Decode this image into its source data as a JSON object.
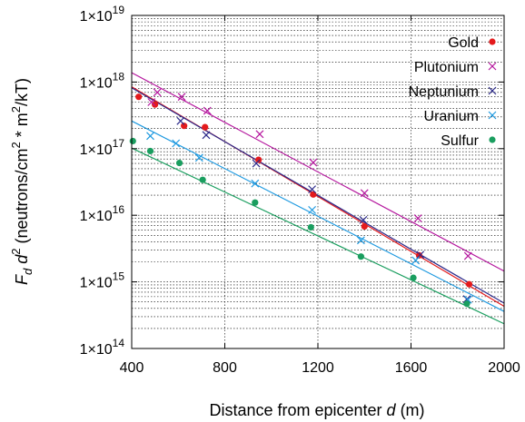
{
  "chart_data": {
    "type": "scatter",
    "xlabel_text": "Distance from epicenter ",
    "xlabel_var": "d",
    "xlabel_unit": " (m)",
    "ylabel_F": "F",
    "ylabel_sub": "d",
    "ylabel_d": "d",
    "ylabel_sup": "2",
    "ylabel_units_a": " (neutrons/cm",
    "ylabel_units_b": " * m",
    "ylabel_units_c": "/kT)",
    "x_scale": "linear",
    "y_scale": "log",
    "xlim": [
      400,
      2000
    ],
    "ylim": [
      100000000000000.0,
      1e+19
    ],
    "x_ticks": [
      {
        "value": 400,
        "label": "400"
      },
      {
        "value": 800,
        "label": "800"
      },
      {
        "value": 1200,
        "label": "1200"
      },
      {
        "value": 1600,
        "label": "1600"
      },
      {
        "value": 2000,
        "label": "2000"
      }
    ],
    "y_ticks": [
      {
        "value": 100000000000000.0,
        "base": "1×10",
        "exp": "14"
      },
      {
        "value": 1000000000000000.0,
        "base": "1×10",
        "exp": "15"
      },
      {
        "value": 1e+16,
        "base": "1×10",
        "exp": "16"
      },
      {
        "value": 1e+17,
        "base": "1×10",
        "exp": "17"
      },
      {
        "value": 1e+18,
        "base": "1×10",
        "exp": "18"
      },
      {
        "value": 1e+19,
        "base": "1×10",
        "exp": "19"
      }
    ],
    "grid": "dotted",
    "legend_position": "top-right",
    "series": [
      {
        "name": "Gold",
        "color": "#e41a1c",
        "marker": "circle",
        "points": [
          [
            430,
            6e+17
          ],
          [
            500,
            4.6e+17
          ],
          [
            625,
            2.2e+17
          ],
          [
            715,
            2.1e+17
          ],
          [
            945,
            6.8e+16
          ],
          [
            1180,
            2.05e+16
          ],
          [
            1400,
            6800000000000000.0
          ],
          [
            1635,
            2500000000000000.0
          ],
          [
            1850,
            920000000000000.0
          ]
        ],
        "fit": [
          [
            400,
            8.5e+17
          ],
          [
            2000,
            430000000000000.0
          ]
        ]
      },
      {
        "name": "Plutonium",
        "color": "#b5179e",
        "marker": "x",
        "points": [
          [
            485,
            5e+17
          ],
          [
            510,
            7e+17
          ],
          [
            615,
            6e+17
          ],
          [
            725,
            3.7e+17
          ],
          [
            950,
            1.65e+17
          ],
          [
            1180,
            6.2e+16
          ],
          [
            1400,
            2.15e+16
          ],
          [
            1630,
            9000000000000000.0
          ],
          [
            1845,
            2450000000000000.0
          ]
        ],
        "fit": [
          [
            400,
            1.38e+18
          ],
          [
            2000,
            1450000000000000.0
          ]
        ]
      },
      {
        "name": "Neptunium",
        "color": "#2c2a8a",
        "marker": "x",
        "points": [
          [
            610,
            2.6e+17
          ],
          [
            720,
            1.6e+17
          ],
          [
            935,
            6e+16
          ],
          [
            1175,
            2.45e+16
          ],
          [
            1395,
            8500000000000000.0
          ],
          [
            1640,
            2550000000000000.0
          ],
          [
            1840,
            550000000000000.0
          ]
        ],
        "fit": [
          [
            400,
            8.2e+17
          ],
          [
            2000,
            480000000000000.0
          ]
        ]
      },
      {
        "name": "Uranium",
        "color": "#1f9ae0",
        "marker": "x",
        "points": [
          [
            480,
            1.55e+17
          ],
          [
            590,
            1.2e+17
          ],
          [
            690,
            7.3e+16
          ],
          [
            930,
            3e+16
          ],
          [
            1175,
            1.2e+16
          ],
          [
            1385,
            4200000000000000.0
          ],
          [
            1620,
            2100000000000000.0
          ],
          [
            1845,
            540000000000000.0
          ]
        ],
        "fit": [
          [
            400,
            2.6e+17
          ],
          [
            2000,
            360000000000000.0
          ]
        ]
      },
      {
        "name": "Sulfur",
        "color": "#1a9e5f",
        "marker": "circle",
        "points": [
          [
            405,
            1.3e+17
          ],
          [
            480,
            9.2e+16
          ],
          [
            605,
            6.1e+16
          ],
          [
            705,
            3.4e+16
          ],
          [
            930,
            1.55e+16
          ],
          [
            1170,
            6600000000000000.0
          ],
          [
            1385,
            2400000000000000.0
          ],
          [
            1610,
            1150000000000000.0
          ],
          [
            1840,
            470000000000000.0
          ]
        ],
        "fit": [
          [
            400,
            1.02e+17
          ],
          [
            2000,
            235000000000000.0
          ]
        ]
      }
    ]
  }
}
